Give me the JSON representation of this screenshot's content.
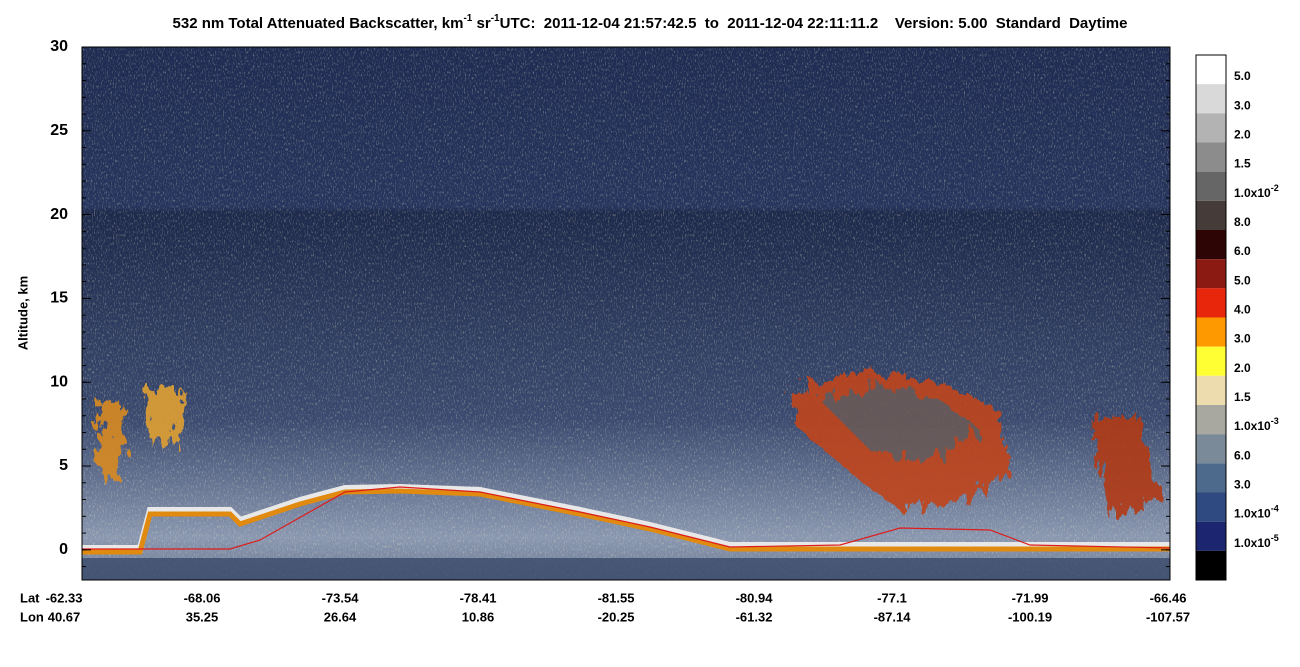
{
  "chart_data": {
    "type": "heatmap",
    "title": {
      "text1": "532 nm Total Attenuated Backscatter, km",
      "sup1": "-1",
      "text2": " sr",
      "sup2": "-1"
    },
    "subtitle": "UTC:  2011-12-04 21:57:42.5  to  2011-12-04 22:11:11.2    Version: 5.00  Standard  Daytime",
    "ylabel": "Altitude, km",
    "ylim": [
      -1.8,
      30
    ],
    "yticks": [
      0,
      5,
      10,
      15,
      20,
      25,
      30
    ],
    "xrows": [
      {
        "name": "Lat",
        "values": [
          -62.33,
          -68.06,
          -73.54,
          -78.41,
          -81.55,
          -80.94,
          -77.1,
          -71.99,
          -66.46
        ]
      },
      {
        "name": "Lon",
        "values": [
          40.67,
          35.25,
          26.64,
          10.86,
          -20.25,
          -61.32,
          -87.14,
          -100.19,
          -107.57
        ]
      }
    ],
    "colorbar": {
      "colors": [
        "#ffffff",
        "#d9d9d9",
        "#b3b3b3",
        "#8c8c8c",
        "#666666",
        "#453c3a",
        "#2e0505",
        "#8b1a12",
        "#e8260c",
        "#ff9900",
        "#ffff33",
        "#ecdcae",
        "#a8a8a0",
        "#7a8a98",
        "#4d6a8c",
        "#2f4a80",
        "#1c2670",
        "#000000"
      ],
      "labels": [
        {
          "text": "5.0"
        },
        {
          "text": "3.0"
        },
        {
          "text": "2.0"
        },
        {
          "text": "1.5"
        },
        {
          "text": "1.0x10",
          "sup": "-2"
        },
        {
          "text": "8.0"
        },
        {
          "text": "6.0"
        },
        {
          "text": "5.0"
        },
        {
          "text": "4.0"
        },
        {
          "text": "3.0"
        },
        {
          "text": "2.0"
        },
        {
          "text": "1.5"
        },
        {
          "text": "1.0x10",
          "sup": "-3"
        },
        {
          "text": "6.0"
        },
        {
          "text": "3.0"
        },
        {
          "text": "1.0x10",
          "sup": "-4"
        },
        {
          "text": "1.0x10",
          "sup": "-5"
        }
      ]
    }
  }
}
